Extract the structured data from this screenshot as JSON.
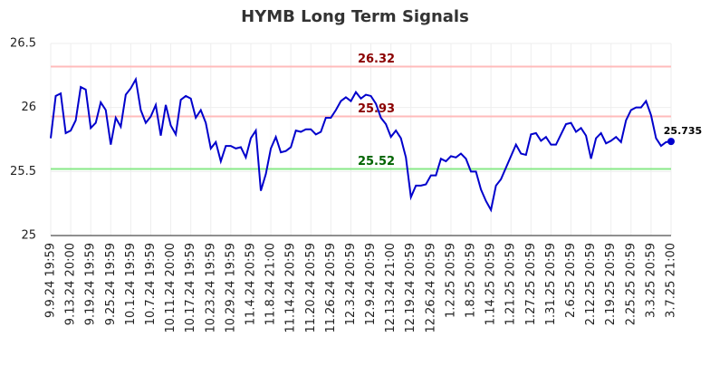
{
  "chart_data": {
    "type": "line",
    "title": "HYMB Long Term Signals",
    "categories": [
      "9.9.24 19:59",
      null,
      null,
      null,
      "9.13.24 20:00",
      null,
      null,
      null,
      "9.19.24 19:59",
      null,
      null,
      null,
      "9.25.24 19:59",
      null,
      null,
      null,
      "10.1.24 19:59",
      null,
      null,
      null,
      "10.7.24 19:59",
      null,
      null,
      null,
      "10.11.24 20:00",
      null,
      null,
      null,
      "10.17.24 19:59",
      null,
      null,
      null,
      "10.23.24 19:59",
      null,
      null,
      null,
      "10.29.24 19:59",
      null,
      null,
      null,
      "11.4.24 20:59",
      null,
      null,
      null,
      "11.8.24 21:00",
      null,
      null,
      null,
      "11.14.24 20:59",
      null,
      null,
      null,
      "11.20.24 20:59",
      null,
      null,
      null,
      "11.26.24 20:59",
      null,
      null,
      null,
      "12.3.24 20:59",
      null,
      null,
      null,
      "12.9.24 20:59",
      null,
      null,
      null,
      "12.13.24 21:00",
      null,
      null,
      null,
      "12.19.24 20:59",
      null,
      null,
      null,
      "12.26.24 20:59",
      null,
      null,
      null,
      "1.2.25 20:59",
      null,
      null,
      null,
      "1.8.25 20:59",
      null,
      null,
      null,
      "1.14.25 20:59",
      null,
      null,
      null,
      "1.21.25 20:59",
      null,
      null,
      null,
      "1.27.25 20:59",
      null,
      null,
      null,
      "1.31.25 20:59",
      null,
      null,
      null,
      "2.6.25 20:59",
      null,
      null,
      null,
      "2.12.25 20:59",
      null,
      null,
      null,
      "2.19.25 20:59",
      null,
      null,
      null,
      "2.25.25 20:59",
      null,
      null,
      null,
      "3.3.25 20:59",
      null,
      null,
      null,
      "3.7.25 21:00"
    ],
    "values": [
      25.76,
      26.09,
      26.11,
      25.8,
      25.82,
      25.9,
      26.16,
      26.14,
      25.84,
      25.88,
      26.04,
      25.98,
      25.71,
      25.92,
      25.85,
      26.1,
      26.15,
      26.22,
      25.98,
      25.88,
      25.93,
      26.02,
      25.78,
      26.02,
      25.86,
      25.79,
      26.06,
      26.09,
      26.07,
      25.92,
      25.98,
      25.88,
      25.68,
      25.73,
      25.58,
      25.7,
      25.7,
      25.68,
      25.69,
      25.61,
      25.76,
      25.82,
      25.35,
      25.48,
      25.68,
      25.77,
      25.65,
      25.66,
      25.69,
      25.82,
      25.81,
      25.83,
      25.83,
      25.79,
      25.81,
      25.92,
      25.92,
      25.98,
      26.05,
      26.08,
      26.05,
      26.12,
      26.07,
      26.1,
      26.09,
      26.03,
      25.92,
      25.87,
      25.77,
      25.82,
      25.76,
      25.61,
      25.3,
      25.39,
      25.39,
      25.4,
      25.47,
      25.47,
      25.6,
      25.58,
      25.62,
      25.61,
      25.64,
      25.6,
      25.5,
      25.5,
      25.36,
      25.27,
      25.2,
      25.39,
      25.44,
      25.53,
      25.62,
      25.71,
      25.64,
      25.63,
      25.79,
      25.8,
      25.74,
      25.77,
      25.71,
      25.71,
      25.79,
      25.87,
      25.88,
      25.81,
      25.84,
      25.78,
      25.6,
      25.76,
      25.8,
      25.72,
      25.74,
      25.77,
      25.73,
      25.9,
      25.98,
      26.0,
      26.0,
      26.05,
      25.94,
      25.76,
      25.7,
      25.73,
      25.735
    ],
    "color": "#0000cc",
    "lines": [
      {
        "value": 26.32,
        "color": "#ffbbbb",
        "label_color": "#8b0000"
      },
      {
        "value": 25.93,
        "color": "#ffbbbb",
        "label_color": "#8b0000"
      },
      {
        "value": 25.52,
        "color": "#88e888",
        "label_color": "#006400"
      }
    ],
    "ylim": [
      25,
      26.5
    ],
    "yticks": [
      25,
      25.5,
      26,
      26.5
    ],
    "grid": true
  }
}
